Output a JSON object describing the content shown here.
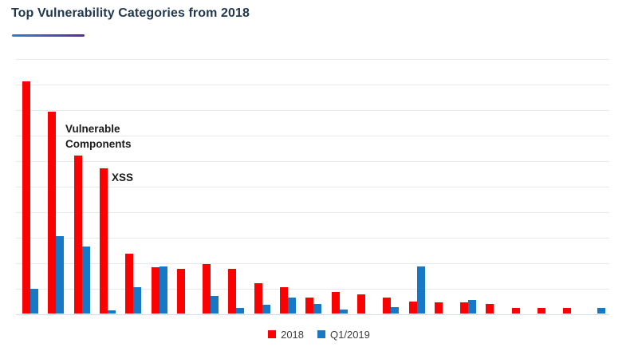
{
  "header": {
    "title": "Top Vulnerability Categories from 2018",
    "title_color": "#22384f",
    "underline_gradient": [
      "#2e7ce0",
      "#5c2d91"
    ]
  },
  "annotations": [
    {
      "text": "Vulnerable Components",
      "target_category_index": 2
    },
    {
      "text": "XSS",
      "target_category_index": 3
    }
  ],
  "colors": {
    "series_2018": "#fa0202",
    "series_q1_2019": "#1778c6",
    "gridline": "#e4e9ee",
    "baseline": "#d6dce3",
    "annotation_text": "#1a1a1a",
    "legend_text": "#3f3f3f"
  },
  "legend": [
    {
      "label": "2018",
      "color": "#fa0202"
    },
    {
      "label": "Q1/2019",
      "color": "#1778c6"
    }
  ],
  "chart_data": {
    "type": "bar",
    "title": "Top Vulnerability Categories from 2018",
    "categories": [
      "",
      "",
      "Vulnerable Components",
      "XSS",
      "",
      "",
      "",
      "",
      "",
      "",
      "",
      "",
      "",
      "",
      "",
      "",
      "",
      "",
      "",
      "",
      "",
      "",
      ""
    ],
    "series": [
      {
        "name": "2018",
        "color": "#fa0202",
        "values": [
          455,
          395,
          310,
          285,
          117,
          91,
          88,
          97,
          87,
          60,
          51,
          32,
          42,
          37,
          32,
          23,
          22,
          22,
          18,
          11,
          11,
          11,
          null
        ]
      },
      {
        "name": "Q1/2019",
        "color": "#1778c6",
        "values": [
          48,
          151,
          132,
          7,
          51,
          92,
          null,
          35,
          11,
          17,
          32,
          18,
          8,
          null,
          12,
          92,
          null,
          27,
          null,
          null,
          null,
          null,
          11
        ]
      }
    ],
    "ylim": [
      0,
      500
    ],
    "y_gridline_step": 50,
    "grid": true,
    "y_axis_labels_visible": false,
    "x_axis_labels_visible": false,
    "legend_position": "bottom",
    "annotations": [
      {
        "text": "Vulnerable Components",
        "category_index": 2
      },
      {
        "text": "XSS",
        "category_index": 3
      }
    ]
  }
}
